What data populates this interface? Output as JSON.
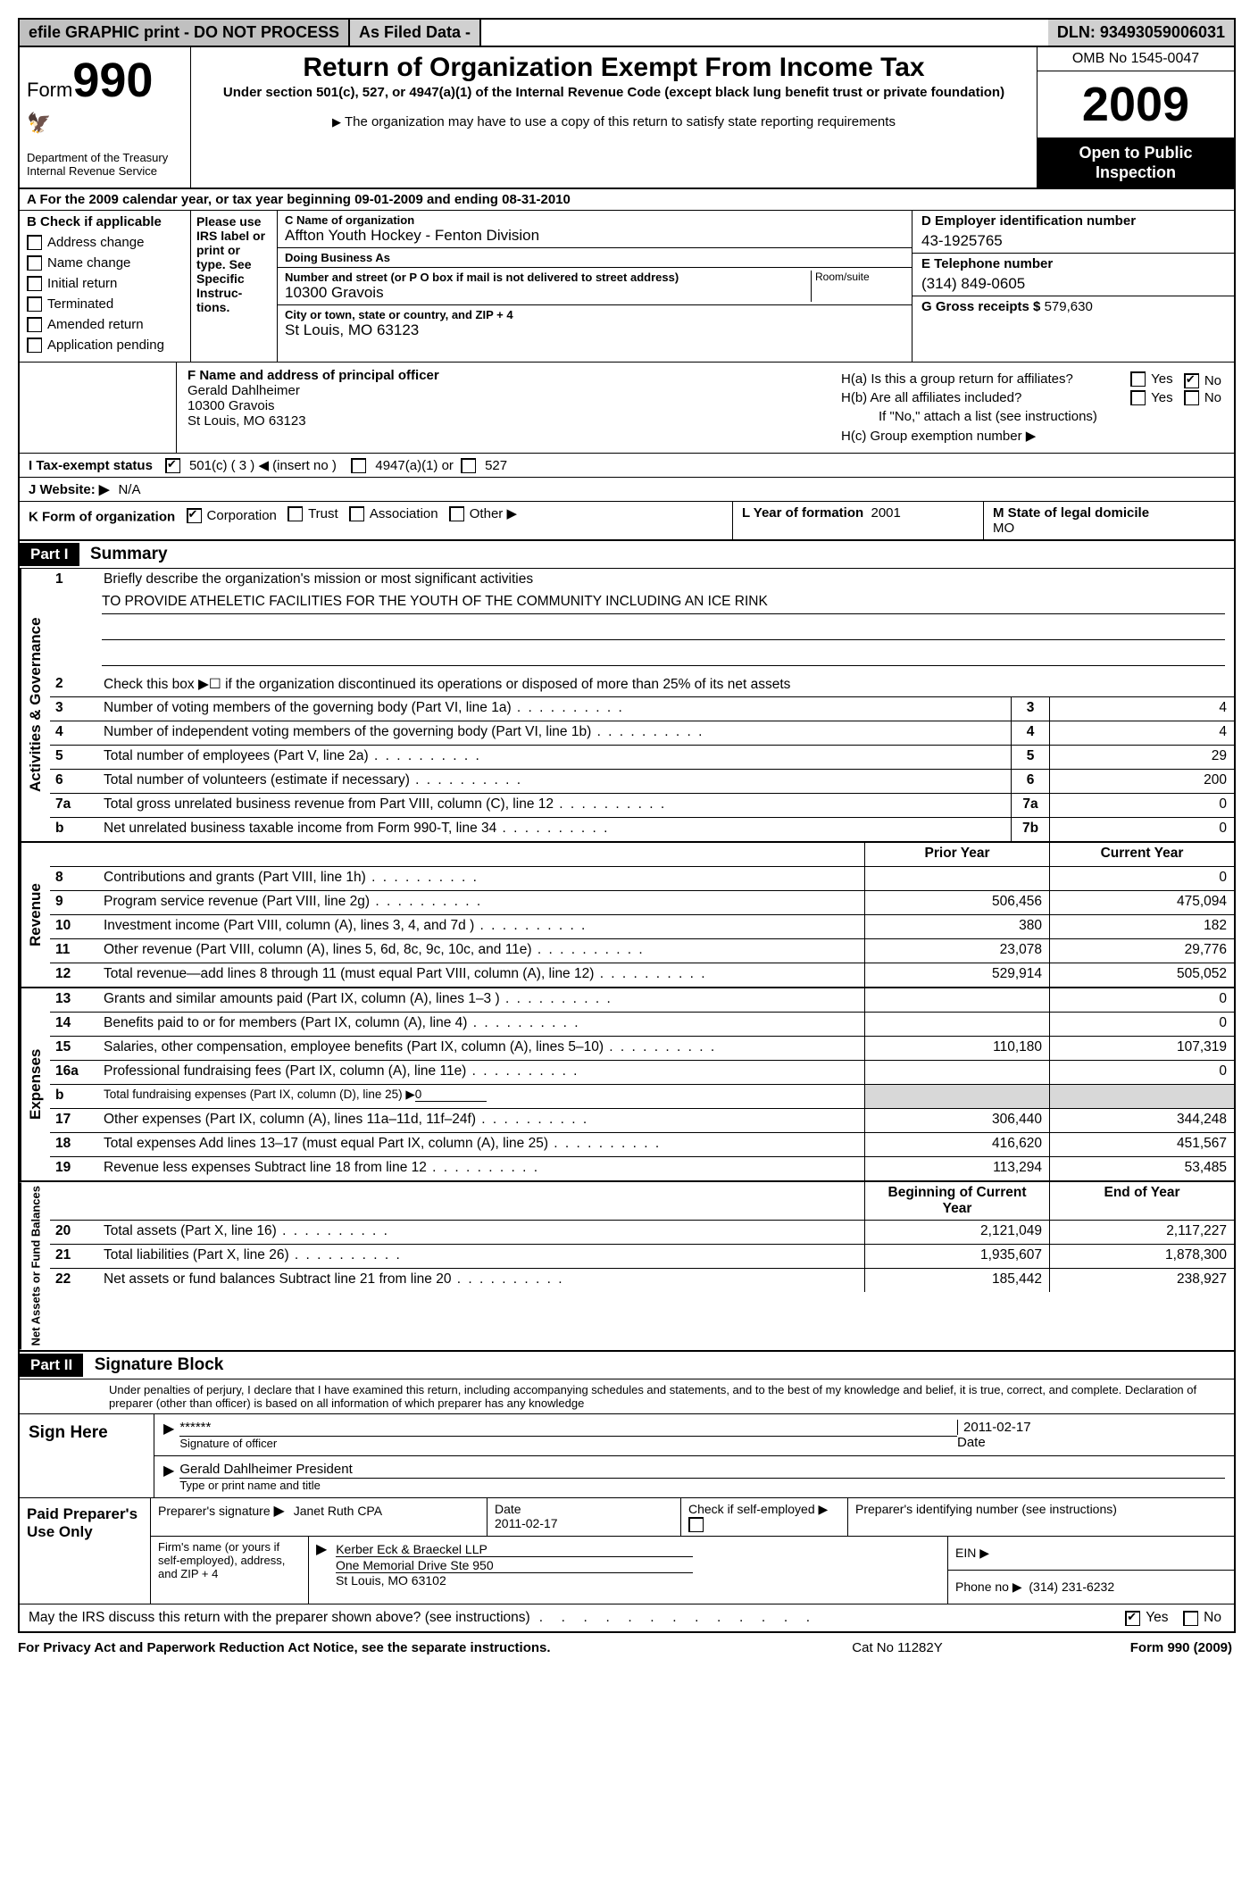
{
  "topbar": {
    "efile": "efile GRAPHIC print - DO NOT PROCESS",
    "asfiled": "As Filed Data -",
    "dln_label": "DLN:",
    "dln": "93493059006031"
  },
  "header": {
    "form_word": "Form",
    "form_no": "990",
    "dept1": "Department of the Treasury",
    "dept2": "Internal Revenue Service",
    "title": "Return of Organization Exempt From Income Tax",
    "subtitle": "Under section 501(c), 527, or 4947(a)(1) of the Internal Revenue Code (except black lung benefit trust or private foundation)",
    "note": "The organization may have to use a copy of this return to satisfy state reporting requirements",
    "omb": "OMB No 1545-0047",
    "year": "2009",
    "inspect1": "Open to Public",
    "inspect2": "Inspection"
  },
  "row_a": "A  For the 2009 calendar year, or tax year beginning 09-01-2009     and ending 08-31-2010",
  "section_b": {
    "heading": "B  Check if applicable",
    "items": [
      "Address change",
      "Name change",
      "Initial return",
      "Terminated",
      "Amended return",
      "Application pending"
    ]
  },
  "col_irs": "Please use IRS label or print or type. See Specific Instruc-tions.",
  "col_c": {
    "c_label": "C Name of organization",
    "c_name": "Affton Youth Hockey - Fenton Division",
    "dba_label": "Doing Business As",
    "dba": "",
    "addr_label": "Number and street (or P O  box if mail is not delivered to street address)",
    "room_label": "Room/suite",
    "addr": "10300 Gravois",
    "city_label": "City or town, state or country, and ZIP + 4",
    "city": "St Louis, MO  63123"
  },
  "col_d": {
    "d_label": "D Employer identification number",
    "ein": "43-1925765",
    "e_label": "E Telephone number",
    "phone": "(314) 849-0605",
    "g_label": "G Gross receipts $",
    "g_val": "579,630"
  },
  "row_fh": {
    "f_label": "F   Name and address of principal officer",
    "f_name": "Gerald Dahlheimer",
    "f_addr1": "10300 Gravois",
    "f_addr2": "St Louis, MO  63123",
    "ha": "H(a)  Is this a group return for affiliates?",
    "hb": "H(b)  Are all affiliates included?",
    "hb_note": "If \"No,\" attach a list  (see instructions)",
    "hc": "H(c)   Group exemption number ▶",
    "yes": "Yes",
    "no": "No"
  },
  "row_i": {
    "label": "I   Tax-exempt status",
    "opt1": "501(c) ( 3 ) ◀ (insert no )",
    "opt2": "4947(a)(1) or",
    "opt3": "527"
  },
  "row_j": {
    "label": "J   Website: ▶",
    "val": "N/A"
  },
  "row_kl": {
    "k_label": "K Form of organization",
    "k_opts": [
      "Corporation",
      "Trust",
      "Association",
      "Other ▶"
    ],
    "l_label": "L Year of formation",
    "l_val": "2001",
    "m_label": "M State of legal domicile",
    "m_val": "MO"
  },
  "part1": {
    "label": "Part I",
    "title": "Summary"
  },
  "governance": {
    "side": "Activities & Governance",
    "line1": "Briefly describe the organization's mission or most significant activities",
    "mission": "TO PROVIDE ATHELETIC FACILITIES FOR THE YOUTH OF THE COMMUNITY INCLUDING AN ICE RINK",
    "line2": "Check this box ▶☐ if the organization discontinued its operations or disposed of more than 25% of its net assets",
    "rows": [
      {
        "n": "3",
        "d": "Number of voting members of the governing body (Part VI, line 1a)",
        "rn": "3",
        "v": "4"
      },
      {
        "n": "4",
        "d": "Number of independent voting members of the governing body (Part VI, line 1b)",
        "rn": "4",
        "v": "4"
      },
      {
        "n": "5",
        "d": "Total number of employees (Part V, line 2a)",
        "rn": "5",
        "v": "29"
      },
      {
        "n": "6",
        "d": "Total number of volunteers (estimate if necessary)",
        "rn": "6",
        "v": "200"
      },
      {
        "n": "7a",
        "d": "Total gross unrelated business revenue from Part VIII, column (C), line 12",
        "rn": "7a",
        "v": "0"
      },
      {
        "n": "b",
        "d": "Net unrelated business taxable income from Form 990-T, line 34",
        "rn": "7b",
        "v": "0"
      }
    ]
  },
  "col_headers": {
    "prior": "Prior Year",
    "curr": "Current Year"
  },
  "revenue": {
    "side": "Revenue",
    "rows": [
      {
        "n": "8",
        "d": "Contributions and grants (Part VIII, line 1h)",
        "p": "",
        "c": "0"
      },
      {
        "n": "9",
        "d": "Program service revenue (Part VIII, line 2g)",
        "p": "506,456",
        "c": "475,094"
      },
      {
        "n": "10",
        "d": "Investment income (Part VIII, column (A), lines 3, 4, and 7d )",
        "p": "380",
        "c": "182"
      },
      {
        "n": "11",
        "d": "Other revenue (Part VIII, column (A), lines 5, 6d, 8c, 9c, 10c, and 11e)",
        "p": "23,078",
        "c": "29,776"
      },
      {
        "n": "12",
        "d": "Total revenue—add lines 8 through 11 (must equal Part VIII, column (A), line 12)",
        "p": "529,914",
        "c": "505,052"
      }
    ]
  },
  "expenses": {
    "side": "Expenses",
    "rows": [
      {
        "n": "13",
        "d": "Grants and similar amounts paid (Part IX, column (A), lines 1–3 )",
        "p": "",
        "c": "0"
      },
      {
        "n": "14",
        "d": "Benefits paid to or for members (Part IX, column (A), line 4)",
        "p": "",
        "c": "0"
      },
      {
        "n": "15",
        "d": "Salaries, other compensation, employee benefits (Part IX, column (A), lines 5–10)",
        "p": "110,180",
        "c": "107,319"
      },
      {
        "n": "16a",
        "d": "Professional fundraising fees (Part IX, column (A), line 11e)",
        "p": "",
        "c": "0"
      },
      {
        "n": "b",
        "d": "Total fundraising expenses (Part IX, column (D), line 25) ▶",
        "p": "shade",
        "c": "shade",
        "inline": "0"
      },
      {
        "n": "17",
        "d": "Other expenses (Part IX, column (A), lines 11a–11d, 11f–24f)",
        "p": "306,440",
        "c": "344,248"
      },
      {
        "n": "18",
        "d": "Total expenses  Add lines 13–17 (must equal Part IX, column (A), line 25)",
        "p": "416,620",
        "c": "451,567"
      },
      {
        "n": "19",
        "d": "Revenue less expenses  Subtract line 18 from line 12",
        "p": "113,294",
        "c": "53,485"
      }
    ]
  },
  "netassets": {
    "side": "Net Assets or Fund Balances",
    "headers": {
      "prior": "Beginning of Current Year",
      "curr": "End of Year"
    },
    "rows": [
      {
        "n": "20",
        "d": "Total assets (Part X, line 16)",
        "p": "2,121,049",
        "c": "2,117,227"
      },
      {
        "n": "21",
        "d": "Total liabilities (Part X, line 26)",
        "p": "1,935,607",
        "c": "1,878,300"
      },
      {
        "n": "22",
        "d": "Net assets or fund balances  Subtract line 21 from line 20",
        "p": "185,442",
        "c": "238,927"
      }
    ]
  },
  "part2": {
    "label": "Part II",
    "title": "Signature Block",
    "perjury": "Under penalties of perjury, I declare that I have examined this return, including accompanying schedules and statements, and to the best of my knowledge and belief, it is true, correct, and complete. Declaration of preparer (other than officer) is based on all information of which preparer has any knowledge"
  },
  "sign": {
    "label": "Sign Here",
    "stars": "******",
    "sig_label": "Signature of officer",
    "date": "2011-02-17",
    "date_label": "Date",
    "name": "Gerald Dahlheimer President",
    "name_label": "Type or print name and title"
  },
  "preparer": {
    "label": "Paid Preparer's Use Only",
    "sig_label": "Preparer's signature",
    "name": "Janet Ruth CPA",
    "date_label": "Date",
    "date": "2011-02-17",
    "self_label": "Check if self-employed ▶",
    "pin_label": "Preparer's identifying number (see instructions)",
    "firm_label": "Firm's name (or yours if self-employed), address, and ZIP + 4",
    "firm_name": "Kerber Eck & Braeckel LLP",
    "firm_addr1": "One Memorial Drive Ste 950",
    "firm_addr2": "St Louis, MO  63102",
    "ein_label": "EIN ▶",
    "phone_label": "Phone no  ▶",
    "phone": "(314) 231-6232"
  },
  "discuss": "May the IRS discuss this return with the preparer shown above? (see instructions)",
  "footer": {
    "l": "For Privacy Act and Paperwork Reduction Act Notice, see the separate instructions.",
    "c": "Cat No  11282Y",
    "r": "Form 990 (2009)"
  }
}
